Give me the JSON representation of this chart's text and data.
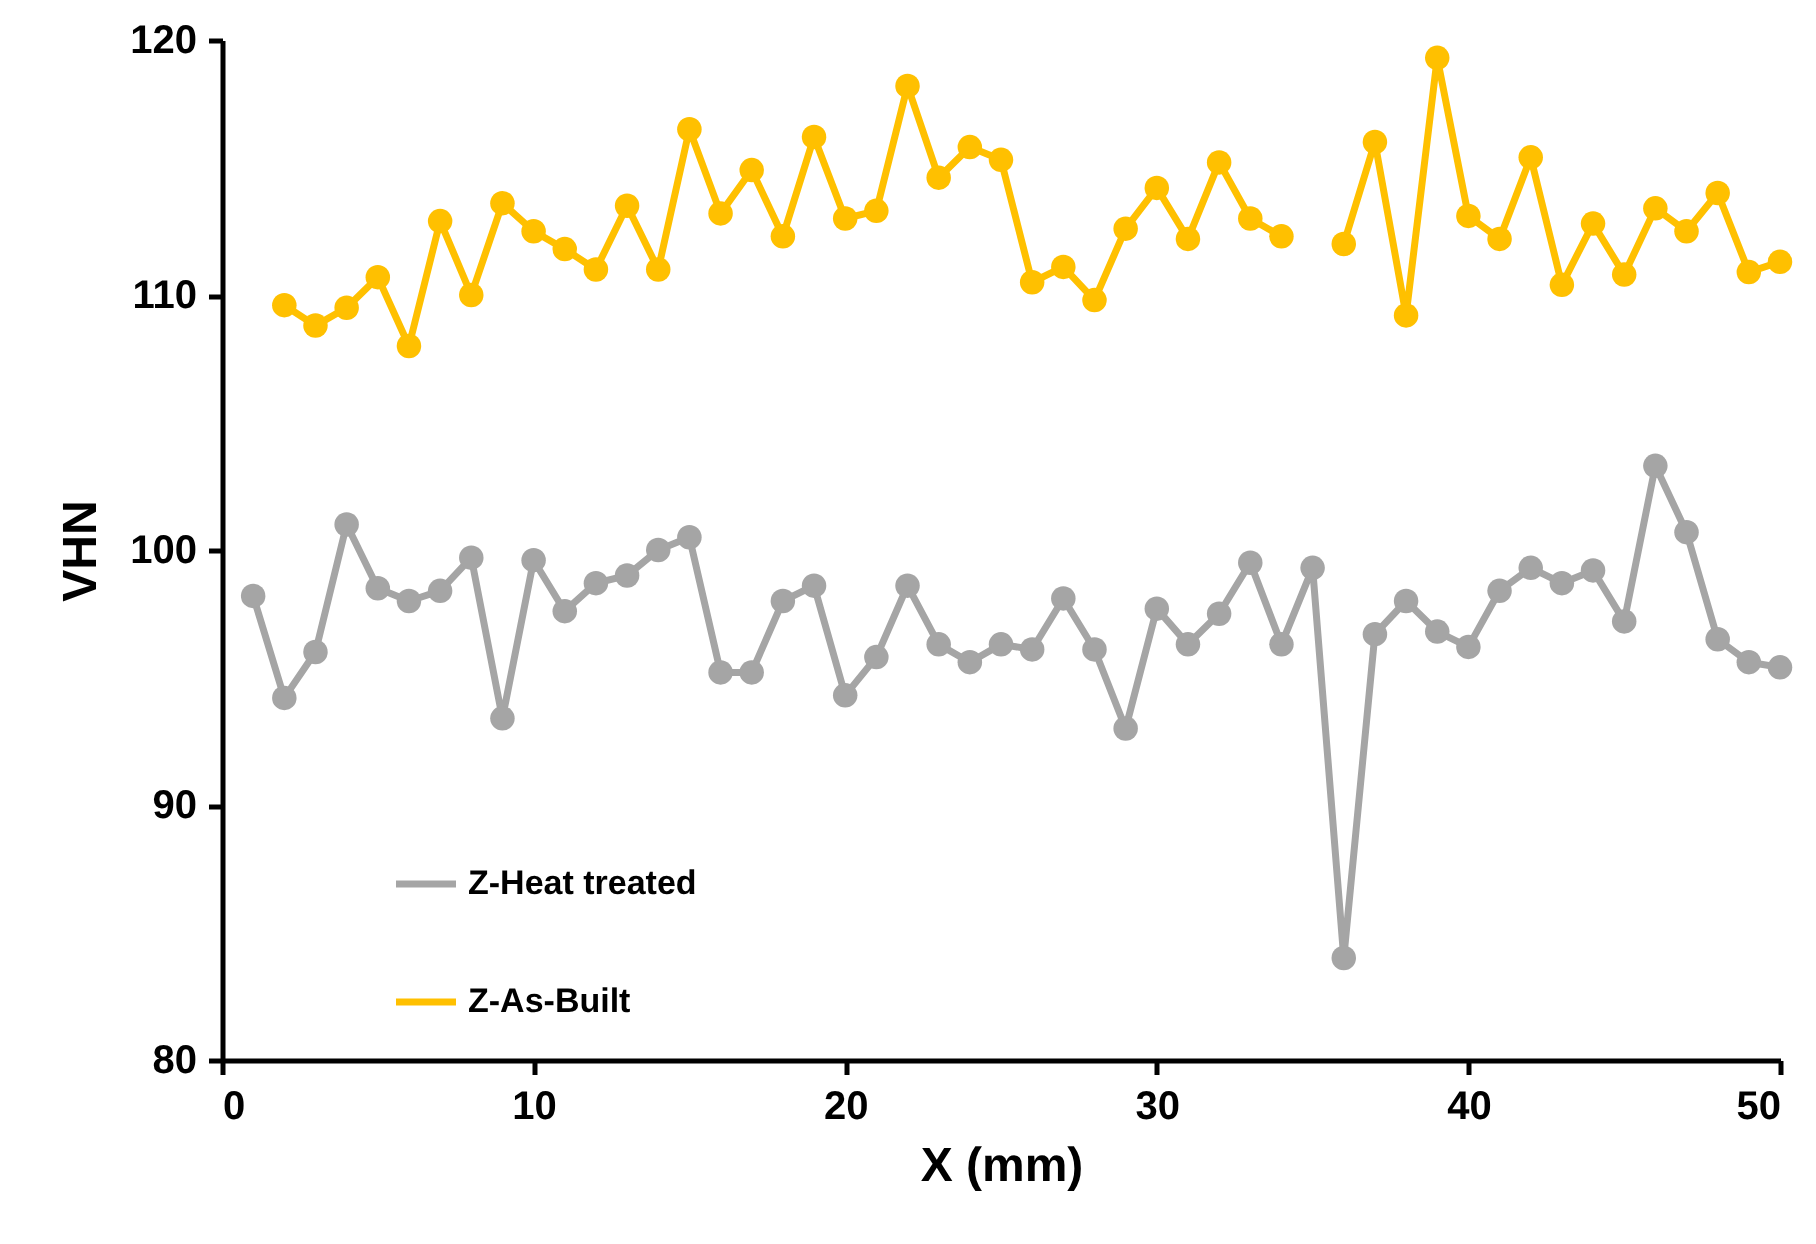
{
  "chart_data": {
    "type": "line",
    "xlabel": "X (mm)",
    "ylabel": "VHN",
    "xlim": [
      0,
      50
    ],
    "xticks": [
      0,
      10,
      20,
      30,
      40,
      50
    ],
    "ylim": [
      80,
      120
    ],
    "yticks": [
      80,
      90,
      100,
      110,
      120
    ],
    "grid": false,
    "legend": "bottom left",
    "marker": "circle",
    "series": [
      {
        "name": "Z-Heat treated",
        "color": "#a5a5a5",
        "x": [
          1,
          2,
          3,
          4,
          5,
          6,
          7,
          8,
          9,
          10,
          11,
          12,
          13,
          14,
          15,
          16,
          17,
          18,
          19,
          20,
          21,
          22,
          23,
          24,
          25,
          26,
          27,
          28,
          29,
          30,
          31,
          32,
          33,
          34,
          35,
          36,
          37,
          38,
          39,
          40,
          41,
          42,
          43,
          44,
          45,
          46,
          47,
          48,
          49,
          50
        ],
        "values": [
          98.2,
          94.2,
          96,
          101,
          98.5,
          98,
          98.4,
          99.7,
          93.4,
          99.6,
          97.6,
          98.7,
          99,
          100,
          100.5,
          95.2,
          95.2,
          98,
          98.6,
          94.3,
          95.8,
          98.6,
          96.3,
          95.6,
          96.3,
          96.1,
          98.1,
          96.1,
          93,
          97.7,
          96.3,
          97.5,
          99.5,
          96.3,
          99.3,
          84,
          96.7,
          98,
          96.8,
          96.2,
          98.4,
          99.3,
          98.7,
          99.2,
          97.2,
          103.3,
          100.7,
          96.5,
          95.6,
          95.4
        ]
      },
      {
        "name": "Z-As-Built",
        "color": "#ffc000",
        "x": [
          2,
          3,
          4,
          5,
          6,
          7,
          8,
          9,
          10,
          11,
          12,
          13,
          14,
          15,
          16,
          17,
          18,
          19,
          20,
          21,
          22,
          23,
          24,
          25,
          26,
          27,
          28,
          29,
          30,
          31,
          32,
          33,
          34,
          35,
          36,
          37,
          38,
          39,
          40,
          41,
          42,
          43,
          44,
          45,
          46,
          47,
          48,
          49,
          50
        ],
        "values": [
          109.6,
          108.8,
          109.5,
          110.7,
          108,
          112.9,
          110,
          113.6,
          112.5,
          111.8,
          111,
          113.5,
          111,
          116.5,
          113.2,
          114.9,
          112.3,
          116.2,
          113,
          113.3,
          118.2,
          114.6,
          115.8,
          115.3,
          110.5,
          111.1,
          109.8,
          112.6,
          114.2,
          112.2,
          115.2,
          113,
          112.3,
          null,
          112,
          116,
          109.2,
          119.3,
          113.1,
          112.2,
          115.4,
          110.4,
          112.8,
          110.8,
          113.4,
          112.5,
          114,
          110.9,
          111.3
        ]
      }
    ]
  }
}
